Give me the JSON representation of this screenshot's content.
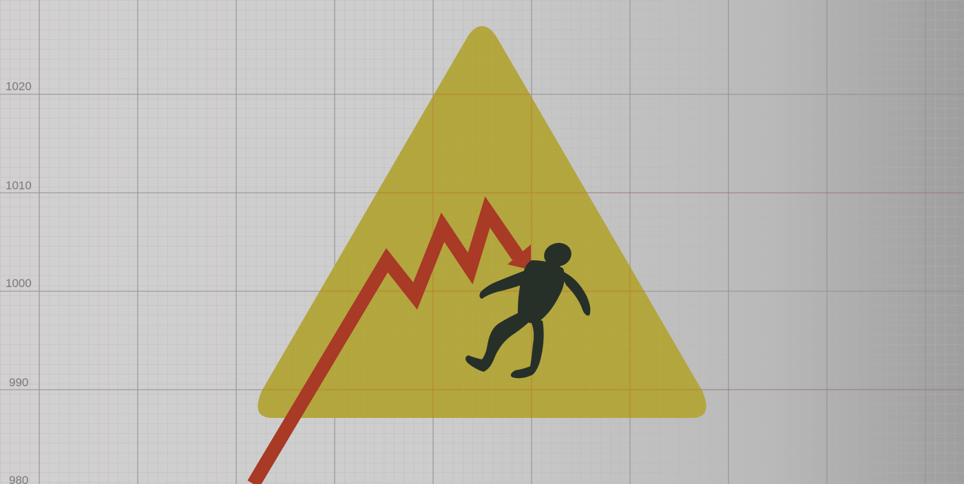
{
  "illustration": {
    "description_icon": "warning-triangle-icon",
    "figure_icon": "falling-person-icon",
    "trend_icon": "zigzag-arrow-icon"
  },
  "axis": {
    "tick_labels": [
      "1020",
      "1010",
      "1000",
      "990",
      "980"
    ]
  },
  "colors": {
    "background_light": "#cfcfcf",
    "background_dark": "#a3a3a3",
    "grid_major": "#8e8e8e",
    "grid_minor": "#b9b9b9",
    "sign_fill": "#b3a63c",
    "arrow": "#a83a26",
    "figure": "#263029",
    "tick_text": "#7a7a7a",
    "red_grid": "#c0392b"
  }
}
